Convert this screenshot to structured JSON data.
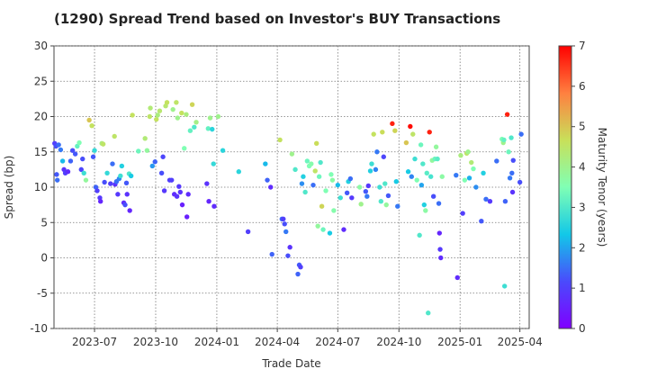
{
  "chart_data": {
    "type": "scatter",
    "title": "(1290)   Spread Trend based on Investor's BUY Transactions",
    "xlabel": "Trade Date",
    "ylabel": "Spread (bp)",
    "xlim": [
      "2023-05-01",
      "2025-04-15"
    ],
    "ylim": [
      -10,
      30
    ],
    "x_ticks": [
      {
        "date": "2023-07-01",
        "label": "2023-07"
      },
      {
        "date": "2023-10-01",
        "label": "2023-10"
      },
      {
        "date": "2024-01-01",
        "label": "2024-01"
      },
      {
        "date": "2024-04-01",
        "label": "2024-04"
      },
      {
        "date": "2024-07-01",
        "label": "2024-07"
      },
      {
        "date": "2024-10-01",
        "label": "2024-10"
      },
      {
        "date": "2025-01-01",
        "label": "2025-01"
      },
      {
        "date": "2025-04-01",
        "label": "2025-04"
      }
    ],
    "y_ticks": [
      -10,
      -5,
      0,
      5,
      10,
      15,
      20,
      25,
      30
    ],
    "grid": true,
    "colorbar": {
      "label": "Maturity Tenor (years)",
      "range": [
        0,
        7
      ],
      "ticks": [
        0,
        1,
        2,
        3,
        4,
        5,
        6,
        7
      ],
      "colormap": "rainbow"
    },
    "points": [
      {
        "x": "2023-05-02",
        "y": 16.2,
        "c": 1.0
      },
      {
        "x": "2023-05-04",
        "y": 15.8,
        "c": 1.2
      },
      {
        "x": "2023-05-05",
        "y": 11.8,
        "c": 1.3
      },
      {
        "x": "2023-05-06",
        "y": 11.0,
        "c": 1.5
      },
      {
        "x": "2023-05-08",
        "y": 16.0,
        "c": 1.5
      },
      {
        "x": "2023-05-11",
        "y": 15.3,
        "c": 1.6
      },
      {
        "x": "2023-05-14",
        "y": 13.7,
        "c": 2.2
      },
      {
        "x": "2023-05-16",
        "y": 12.5,
        "c": 0.8
      },
      {
        "x": "2023-05-18",
        "y": 12.0,
        "c": 1.0
      },
      {
        "x": "2023-05-22",
        "y": 12.2,
        "c": 0.7
      },
      {
        "x": "2023-05-26",
        "y": 13.7,
        "c": 1.4
      },
      {
        "x": "2023-05-29",
        "y": 15.2,
        "c": 1.2
      },
      {
        "x": "2023-06-02",
        "y": 14.7,
        "c": 1.3
      },
      {
        "x": "2023-06-05",
        "y": 15.8,
        "c": 3.2
      },
      {
        "x": "2023-06-08",
        "y": 16.3,
        "c": 3.5
      },
      {
        "x": "2023-06-11",
        "y": 12.5,
        "c": 1.1
      },
      {
        "x": "2023-06-13",
        "y": 14.0,
        "c": 1.2
      },
      {
        "x": "2023-06-15",
        "y": 12.0,
        "c": 2.8
      },
      {
        "x": "2023-06-18",
        "y": 11.0,
        "c": 3.8
      },
      {
        "x": "2023-06-23",
        "y": 19.5,
        "c": 5.0
      },
      {
        "x": "2023-06-27",
        "y": 18.7,
        "c": 4.6
      },
      {
        "x": "2023-06-29",
        "y": 14.3,
        "c": 1.3
      },
      {
        "x": "2023-07-01",
        "y": 15.2,
        "c": 2.7
      },
      {
        "x": "2023-07-03",
        "y": 10.0,
        "c": 1.4
      },
      {
        "x": "2023-07-05",
        "y": 9.5,
        "c": 1.0
      },
      {
        "x": "2023-07-09",
        "y": 8.5,
        "c": 0.9
      },
      {
        "x": "2023-07-10",
        "y": 8.0,
        "c": 0.6
      },
      {
        "x": "2023-07-12",
        "y": 16.2,
        "c": 4.2
      },
      {
        "x": "2023-07-14",
        "y": 16.1,
        "c": 4.5
      },
      {
        "x": "2023-07-16",
        "y": 10.7,
        "c": 1.2
      },
      {
        "x": "2023-07-20",
        "y": 12.0,
        "c": 2.7
      },
      {
        "x": "2023-07-25",
        "y": 10.5,
        "c": 1.0
      },
      {
        "x": "2023-07-28",
        "y": 13.3,
        "c": 1.5
      },
      {
        "x": "2023-07-31",
        "y": 17.2,
        "c": 4.5
      },
      {
        "x": "2023-08-01",
        "y": 10.4,
        "c": 0.8
      },
      {
        "x": "2023-08-03",
        "y": 10.8,
        "c": 1.5
      },
      {
        "x": "2023-08-05",
        "y": 9.0,
        "c": 0.9
      },
      {
        "x": "2023-08-07",
        "y": 11.2,
        "c": 1.7
      },
      {
        "x": "2023-08-09",
        "y": 11.6,
        "c": 2.8
      },
      {
        "x": "2023-08-11",
        "y": 13.0,
        "c": 2.5
      },
      {
        "x": "2023-08-14",
        "y": 7.8,
        "c": 0.7
      },
      {
        "x": "2023-08-16",
        "y": 7.5,
        "c": 1.2
      },
      {
        "x": "2023-08-18",
        "y": 10.6,
        "c": 1.3
      },
      {
        "x": "2023-08-19",
        "y": 9.0,
        "c": 0.8
      },
      {
        "x": "2023-08-22",
        "y": 11.9,
        "c": 3.0
      },
      {
        "x": "2023-08-23",
        "y": 6.7,
        "c": 0.6
      },
      {
        "x": "2023-08-25",
        "y": 11.6,
        "c": 2.4
      },
      {
        "x": "2023-08-27",
        "y": 20.2,
        "c": 4.6
      },
      {
        "x": "2023-09-05",
        "y": 15.1,
        "c": 3.3
      },
      {
        "x": "2023-09-15",
        "y": 16.9,
        "c": 4.3
      },
      {
        "x": "2023-09-18",
        "y": 15.2,
        "c": 3.8
      },
      {
        "x": "2023-09-22",
        "y": 20.0,
        "c": 4.5
      },
      {
        "x": "2023-09-23",
        "y": 21.2,
        "c": 4.3
      },
      {
        "x": "2023-09-26",
        "y": 13.0,
        "c": 1.9
      },
      {
        "x": "2023-09-30",
        "y": 13.6,
        "c": 1.4
      },
      {
        "x": "2023-10-02",
        "y": 19.6,
        "c": 4.6
      },
      {
        "x": "2023-10-04",
        "y": 20.2,
        "c": 4.2
      },
      {
        "x": "2023-10-07",
        "y": 20.8,
        "c": 4.4
      },
      {
        "x": "2023-10-10",
        "y": 12.0,
        "c": 1.2
      },
      {
        "x": "2023-10-12",
        "y": 14.3,
        "c": 1.1
      },
      {
        "x": "2023-10-14",
        "y": 9.5,
        "c": 0.9
      },
      {
        "x": "2023-10-16",
        "y": 21.5,
        "c": 4.4
      },
      {
        "x": "2023-10-18",
        "y": 22.0,
        "c": 4.6
      },
      {
        "x": "2023-10-22",
        "y": 11.0,
        "c": 1.0
      },
      {
        "x": "2023-10-25",
        "y": 11.0,
        "c": 1.0
      },
      {
        "x": "2023-10-27",
        "y": 21.0,
        "c": 4.0
      },
      {
        "x": "2023-10-29",
        "y": 9.0,
        "c": 0.7
      },
      {
        "x": "2023-11-01",
        "y": 22.0,
        "c": 4.5
      },
      {
        "x": "2023-11-02",
        "y": 8.7,
        "c": 0.8
      },
      {
        "x": "2023-11-03",
        "y": 19.8,
        "c": 4.0
      },
      {
        "x": "2023-11-05",
        "y": 10.1,
        "c": 0.9
      },
      {
        "x": "2023-11-07",
        "y": 9.3,
        "c": 0.8
      },
      {
        "x": "2023-11-09",
        "y": 20.5,
        "c": 4.6
      },
      {
        "x": "2023-11-10",
        "y": 7.5,
        "c": 0.5
      },
      {
        "x": "2023-11-13",
        "y": 15.5,
        "c": 3.5
      },
      {
        "x": "2023-11-16",
        "y": 20.3,
        "c": 4.2
      },
      {
        "x": "2023-11-17",
        "y": 5.8,
        "c": 0.5
      },
      {
        "x": "2023-11-19",
        "y": 9.0,
        "c": 0.7
      },
      {
        "x": "2023-11-22",
        "y": 18.0,
        "c": 3.2
      },
      {
        "x": "2023-11-25",
        "y": 21.7,
        "c": 4.8
      },
      {
        "x": "2023-11-28",
        "y": 18.5,
        "c": 3.0
      },
      {
        "x": "2023-12-01",
        "y": 19.2,
        "c": 4.1
      },
      {
        "x": "2023-12-17",
        "y": 10.5,
        "c": 0.8
      },
      {
        "x": "2023-12-19",
        "y": 18.3,
        "c": 3.2
      },
      {
        "x": "2023-12-20",
        "y": 8.0,
        "c": 0.6
      },
      {
        "x": "2023-12-22",
        "y": 19.8,
        "c": 4.0
      },
      {
        "x": "2023-12-25",
        "y": 18.2,
        "c": 2.6
      },
      {
        "x": "2023-12-27",
        "y": 13.3,
        "c": 2.7
      },
      {
        "x": "2023-12-28",
        "y": 7.3,
        "c": 0.7
      },
      {
        "x": "2024-01-03",
        "y": 20.0,
        "c": 4.0
      },
      {
        "x": "2024-01-10",
        "y": 15.2,
        "c": 2.6
      },
      {
        "x": "2024-02-03",
        "y": 12.2,
        "c": 2.6
      },
      {
        "x": "2024-02-17",
        "y": 3.7,
        "c": 1.0
      },
      {
        "x": "2024-03-14",
        "y": 13.3,
        "c": 2.2
      },
      {
        "x": "2024-03-17",
        "y": 11.0,
        "c": 1.4
      },
      {
        "x": "2024-03-22",
        "y": 10.0,
        "c": 0.7
      },
      {
        "x": "2024-03-24",
        "y": 0.5,
        "c": 1.4
      },
      {
        "x": "2024-04-05",
        "y": 16.7,
        "c": 4.6
      },
      {
        "x": "2024-04-08",
        "y": 5.5,
        "c": 1.5
      },
      {
        "x": "2024-04-10",
        "y": 5.5,
        "c": 1.0
      },
      {
        "x": "2024-04-12",
        "y": 4.8,
        "c": 1.2
      },
      {
        "x": "2024-04-14",
        "y": 3.7,
        "c": 1.6
      },
      {
        "x": "2024-04-17",
        "y": 0.3,
        "c": 1.2
      },
      {
        "x": "2024-04-20",
        "y": 1.5,
        "c": 0.8
      },
      {
        "x": "2024-04-23",
        "y": 14.7,
        "c": 4.0
      },
      {
        "x": "2024-04-28",
        "y": 12.5,
        "c": 3.0
      },
      {
        "x": "2024-05-02",
        "y": -2.3,
        "c": 1.4
      },
      {
        "x": "2024-05-04",
        "y": -1.0,
        "c": 1.3
      },
      {
        "x": "2024-05-06",
        "y": -1.3,
        "c": 1.0
      },
      {
        "x": "2024-05-08",
        "y": 10.5,
        "c": 1.8
      },
      {
        "x": "2024-05-10",
        "y": 11.5,
        "c": 2.5
      },
      {
        "x": "2024-05-13",
        "y": 9.3,
        "c": 3.0
      },
      {
        "x": "2024-05-16",
        "y": 13.7,
        "c": 3.3
      },
      {
        "x": "2024-05-19",
        "y": 13.0,
        "c": 3.5
      },
      {
        "x": "2024-05-22",
        "y": 13.3,
        "c": 3.6
      },
      {
        "x": "2024-05-25",
        "y": 10.3,
        "c": 1.5
      },
      {
        "x": "2024-05-28",
        "y": 12.3,
        "c": 4.5
      },
      {
        "x": "2024-05-30",
        "y": 16.2,
        "c": 4.7
      },
      {
        "x": "2024-06-01",
        "y": 4.5,
        "c": 3.8
      },
      {
        "x": "2024-06-03",
        "y": 11.5,
        "c": 3.3
      },
      {
        "x": "2024-06-05",
        "y": 13.5,
        "c": 3.0
      },
      {
        "x": "2024-06-07",
        "y": 7.3,
        "c": 4.8
      },
      {
        "x": "2024-06-09",
        "y": 4.0,
        "c": 3.3
      },
      {
        "x": "2024-06-13",
        "y": 9.5,
        "c": 3.5
      },
      {
        "x": "2024-06-19",
        "y": 3.5,
        "c": 2.4
      },
      {
        "x": "2024-06-21",
        "y": 11.8,
        "c": 3.5
      },
      {
        "x": "2024-06-23",
        "y": 11.0,
        "c": 3.7
      },
      {
        "x": "2024-06-25",
        "y": 6.7,
        "c": 3.6
      },
      {
        "x": "2024-07-01",
        "y": 10.3,
        "c": 2.2
      },
      {
        "x": "2024-07-05",
        "y": 8.5,
        "c": 2.8
      },
      {
        "x": "2024-07-10",
        "y": 4.0,
        "c": 0.7
      },
      {
        "x": "2024-07-15",
        "y": 9.2,
        "c": 1.3
      },
      {
        "x": "2024-07-17",
        "y": 10.8,
        "c": 2.5
      },
      {
        "x": "2024-07-20",
        "y": 11.2,
        "c": 1.5
      },
      {
        "x": "2024-07-22",
        "y": 8.5,
        "c": 0.9
      },
      {
        "x": "2024-08-03",
        "y": 10.0,
        "c": 3.7
      },
      {
        "x": "2024-08-05",
        "y": 7.6,
        "c": 4.0
      },
      {
        "x": "2024-08-12",
        "y": 9.4,
        "c": 1.3
      },
      {
        "x": "2024-08-14",
        "y": 8.7,
        "c": 1.6
      },
      {
        "x": "2024-08-16",
        "y": 10.2,
        "c": 0.9
      },
      {
        "x": "2024-08-19",
        "y": 12.3,
        "c": 2.5
      },
      {
        "x": "2024-08-21",
        "y": 13.3,
        "c": 2.8
      },
      {
        "x": "2024-08-24",
        "y": 17.5,
        "c": 4.6
      },
      {
        "x": "2024-08-27",
        "y": 12.5,
        "c": 1.7
      },
      {
        "x": "2024-08-29",
        "y": 15.0,
        "c": 1.6
      },
      {
        "x": "2024-09-02",
        "y": 10.0,
        "c": 2.8
      },
      {
        "x": "2024-09-04",
        "y": 8.0,
        "c": 3.0
      },
      {
        "x": "2024-09-06",
        "y": 17.8,
        "c": 4.7
      },
      {
        "x": "2024-09-08",
        "y": 14.3,
        "c": 1.1
      },
      {
        "x": "2024-09-10",
        "y": 10.5,
        "c": 3.0
      },
      {
        "x": "2024-09-12",
        "y": 7.5,
        "c": 3.8
      },
      {
        "x": "2024-09-15",
        "y": 8.8,
        "c": 1.3
      },
      {
        "x": "2024-09-21",
        "y": 19.0,
        "c": 6.7
      },
      {
        "x": "2024-09-25",
        "y": 18.0,
        "c": 4.8
      },
      {
        "x": "2024-09-27",
        "y": 10.8,
        "c": 2.4
      },
      {
        "x": "2024-09-29",
        "y": 7.3,
        "c": 1.6
      },
      {
        "x": "2024-10-12",
        "y": 16.3,
        "c": 5.0
      },
      {
        "x": "2024-10-15",
        "y": 12.2,
        "c": 2.4
      },
      {
        "x": "2024-10-18",
        "y": 18.6,
        "c": 6.9
      },
      {
        "x": "2024-10-20",
        "y": 11.5,
        "c": 1.7
      },
      {
        "x": "2024-10-22",
        "y": 17.5,
        "c": 4.5
      },
      {
        "x": "2024-10-25",
        "y": 14.0,
        "c": 2.8
      },
      {
        "x": "2024-10-28",
        "y": 11.0,
        "c": 3.5
      },
      {
        "x": "2024-11-01",
        "y": 3.2,
        "c": 3.0
      },
      {
        "x": "2024-11-03",
        "y": 16.0,
        "c": 3.3
      },
      {
        "x": "2024-11-04",
        "y": 10.3,
        "c": 2.0
      },
      {
        "x": "2024-11-06",
        "y": 13.3,
        "c": 3.0
      },
      {
        "x": "2024-11-08",
        "y": 7.5,
        "c": 2.5
      },
      {
        "x": "2024-11-10",
        "y": 6.7,
        "c": 3.7
      },
      {
        "x": "2024-11-12",
        "y": 12.0,
        "c": 3.1
      },
      {
        "x": "2024-11-14",
        "y": -7.8,
        "c": 3.0
      },
      {
        "x": "2024-11-16",
        "y": 17.8,
        "c": 6.7
      },
      {
        "x": "2024-11-18",
        "y": 11.5,
        "c": 2.9
      },
      {
        "x": "2024-11-20",
        "y": 13.8,
        "c": 3.8
      },
      {
        "x": "2024-11-22",
        "y": 8.7,
        "c": 1.2
      },
      {
        "x": "2024-11-24",
        "y": 14.0,
        "c": 3.3
      },
      {
        "x": "2024-11-26",
        "y": 15.7,
        "c": 3.8
      },
      {
        "x": "2024-11-28",
        "y": 14.0,
        "c": 3.1
      },
      {
        "x": "2024-11-30",
        "y": 7.7,
        "c": 1.5
      },
      {
        "x": "2024-12-01",
        "y": 3.5,
        "c": 0.6
      },
      {
        "x": "2024-12-02",
        "y": 1.2,
        "c": 0.9
      },
      {
        "x": "2024-12-03",
        "y": 0.0,
        "c": 0.7
      },
      {
        "x": "2024-12-05",
        "y": 11.5,
        "c": 3.7
      },
      {
        "x": "2024-12-26",
        "y": 11.7,
        "c": 1.6
      },
      {
        "x": "2024-12-28",
        "y": -2.8,
        "c": 0.7
      },
      {
        "x": "2025-01-02",
        "y": 14.5,
        "c": 4.2
      },
      {
        "x": "2025-01-05",
        "y": 6.3,
        "c": 1.0
      },
      {
        "x": "2025-01-08",
        "y": 11.0,
        "c": 3.5
      },
      {
        "x": "2025-01-11",
        "y": 14.8,
        "c": 4.5
      },
      {
        "x": "2025-01-13",
        "y": 15.0,
        "c": 4.0
      },
      {
        "x": "2025-01-15",
        "y": 11.3,
        "c": 2.1
      },
      {
        "x": "2025-01-18",
        "y": 13.5,
        "c": 4.3
      },
      {
        "x": "2025-01-21",
        "y": 12.6,
        "c": 3.5
      },
      {
        "x": "2025-01-25",
        "y": 10.0,
        "c": 1.8
      },
      {
        "x": "2025-02-02",
        "y": 5.2,
        "c": 1.3
      },
      {
        "x": "2025-02-05",
        "y": 12.0,
        "c": 2.5
      },
      {
        "x": "2025-02-09",
        "y": 8.3,
        "c": 1.5
      },
      {
        "x": "2025-02-15",
        "y": 8.0,
        "c": 0.9
      },
      {
        "x": "2025-02-25",
        "y": 13.7,
        "c": 1.5
      },
      {
        "x": "2025-03-05",
        "y": 16.8,
        "c": 3.5
      },
      {
        "x": "2025-03-07",
        "y": 16.3,
        "c": 4.0
      },
      {
        "x": "2025-03-08",
        "y": 16.7,
        "c": 3.2
      },
      {
        "x": "2025-03-09",
        "y": -4.0,
        "c": 2.8
      },
      {
        "x": "2025-03-10",
        "y": 8.0,
        "c": 1.4
      },
      {
        "x": "2025-03-13",
        "y": 20.3,
        "c": 6.7
      },
      {
        "x": "2025-03-15",
        "y": 15.0,
        "c": 3.3
      },
      {
        "x": "2025-03-17",
        "y": 11.3,
        "c": 1.6
      },
      {
        "x": "2025-03-19",
        "y": 17.0,
        "c": 3.0
      },
      {
        "x": "2025-03-20",
        "y": 12.0,
        "c": 1.5
      },
      {
        "x": "2025-03-21",
        "y": 9.3,
        "c": 0.8
      },
      {
        "x": "2025-03-22",
        "y": 13.8,
        "c": 1.2
      },
      {
        "x": "2025-04-01",
        "y": 10.7,
        "c": 1.2
      },
      {
        "x": "2025-04-03",
        "y": 17.5,
        "c": 1.5
      }
    ]
  }
}
